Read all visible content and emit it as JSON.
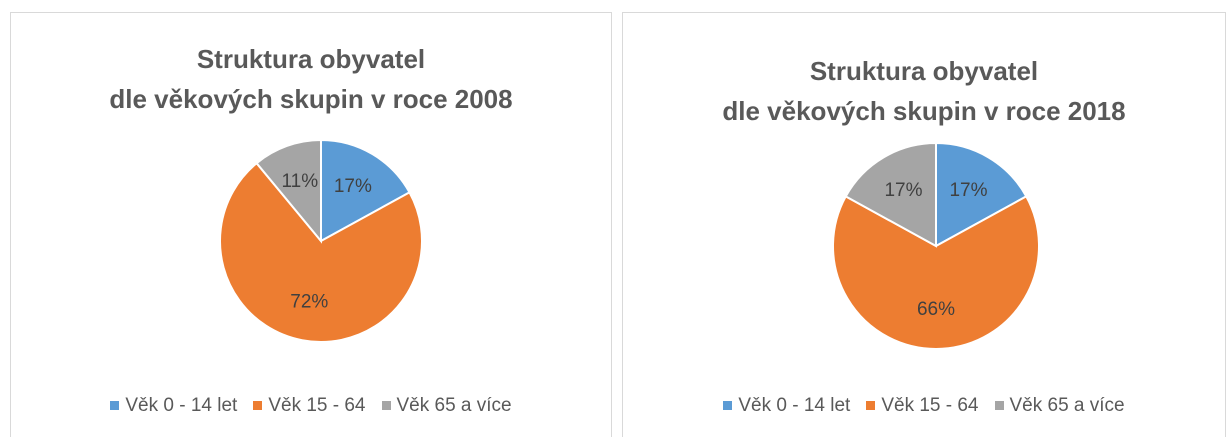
{
  "chart_data": [
    {
      "type": "pie",
      "title": "Struktura obyvatel\ndle věkových skupin v roce 2008",
      "categories": [
        "Věk 0 - 14 let",
        "Věk 15 - 64",
        "Věk 65 a více"
      ],
      "values": [
        17,
        72,
        11
      ],
      "value_labels": [
        "17%",
        "72%",
        "11%"
      ],
      "colors": [
        "#5b9bd5",
        "#ed7d31",
        "#a5a5a5"
      ],
      "legend": "bottom"
    },
    {
      "type": "pie",
      "title": "Struktura obyvatel\ndle věkových skupin v roce 2018",
      "categories": [
        "Věk 0 - 14 let",
        "Věk 15 - 64",
        "Věk 65 a více"
      ],
      "values": [
        17,
        66,
        17
      ],
      "value_labels": [
        "17%",
        "66%",
        "17%"
      ],
      "colors": [
        "#5b9bd5",
        "#ed7d31",
        "#a5a5a5"
      ],
      "legend": "bottom"
    }
  ]
}
